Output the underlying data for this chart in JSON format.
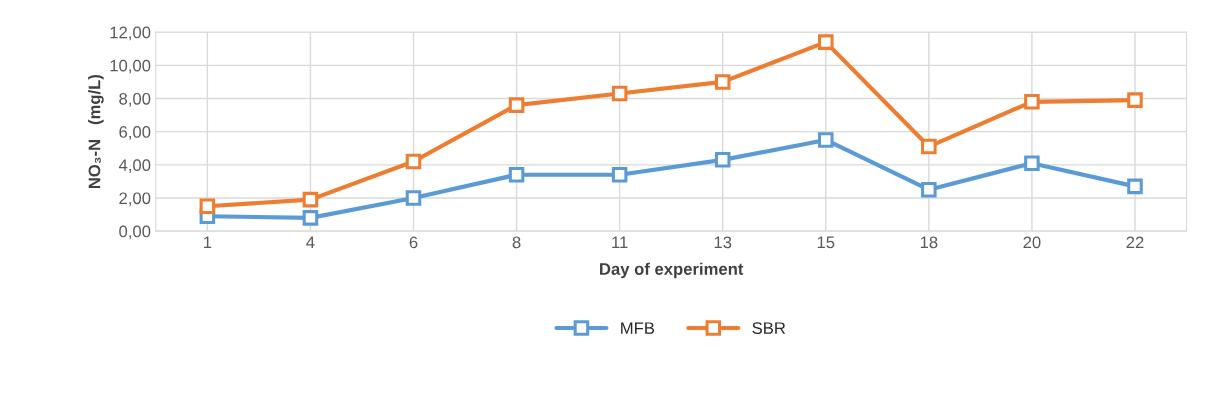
{
  "chart_data": {
    "type": "line",
    "xlabel": "Day of experiment",
    "ylabel": "NO₃-N   (mg/L)",
    "categories": [
      "1",
      "4",
      "6",
      "8",
      "11",
      "13",
      "15",
      "18",
      "20",
      "22"
    ],
    "series": [
      {
        "name": "MFB",
        "color": "#5b9bd5",
        "values": [
          0.9,
          0.8,
          2.0,
          3.4,
          3.4,
          4.3,
          5.5,
          2.5,
          4.1,
          2.7
        ]
      },
      {
        "name": "SBR",
        "color": "#ed7d31",
        "values": [
          1.5,
          1.9,
          4.2,
          7.6,
          8.3,
          9.0,
          11.4,
          5.1,
          7.8,
          7.9
        ]
      }
    ],
    "ylim": [
      0,
      12
    ],
    "yticks": [
      {
        "value": 0,
        "label": "0,00"
      },
      {
        "value": 2,
        "label": "2,00"
      },
      {
        "value": 4,
        "label": "4,00"
      },
      {
        "value": 6,
        "label": "6,00"
      },
      {
        "value": 8,
        "label": "8,00"
      },
      {
        "value": 10,
        "label": "10,00"
      },
      {
        "value": 12,
        "label": "12,00"
      }
    ],
    "grid": true,
    "legend": "bottom",
    "marker": "square",
    "line_style": "solid"
  }
}
